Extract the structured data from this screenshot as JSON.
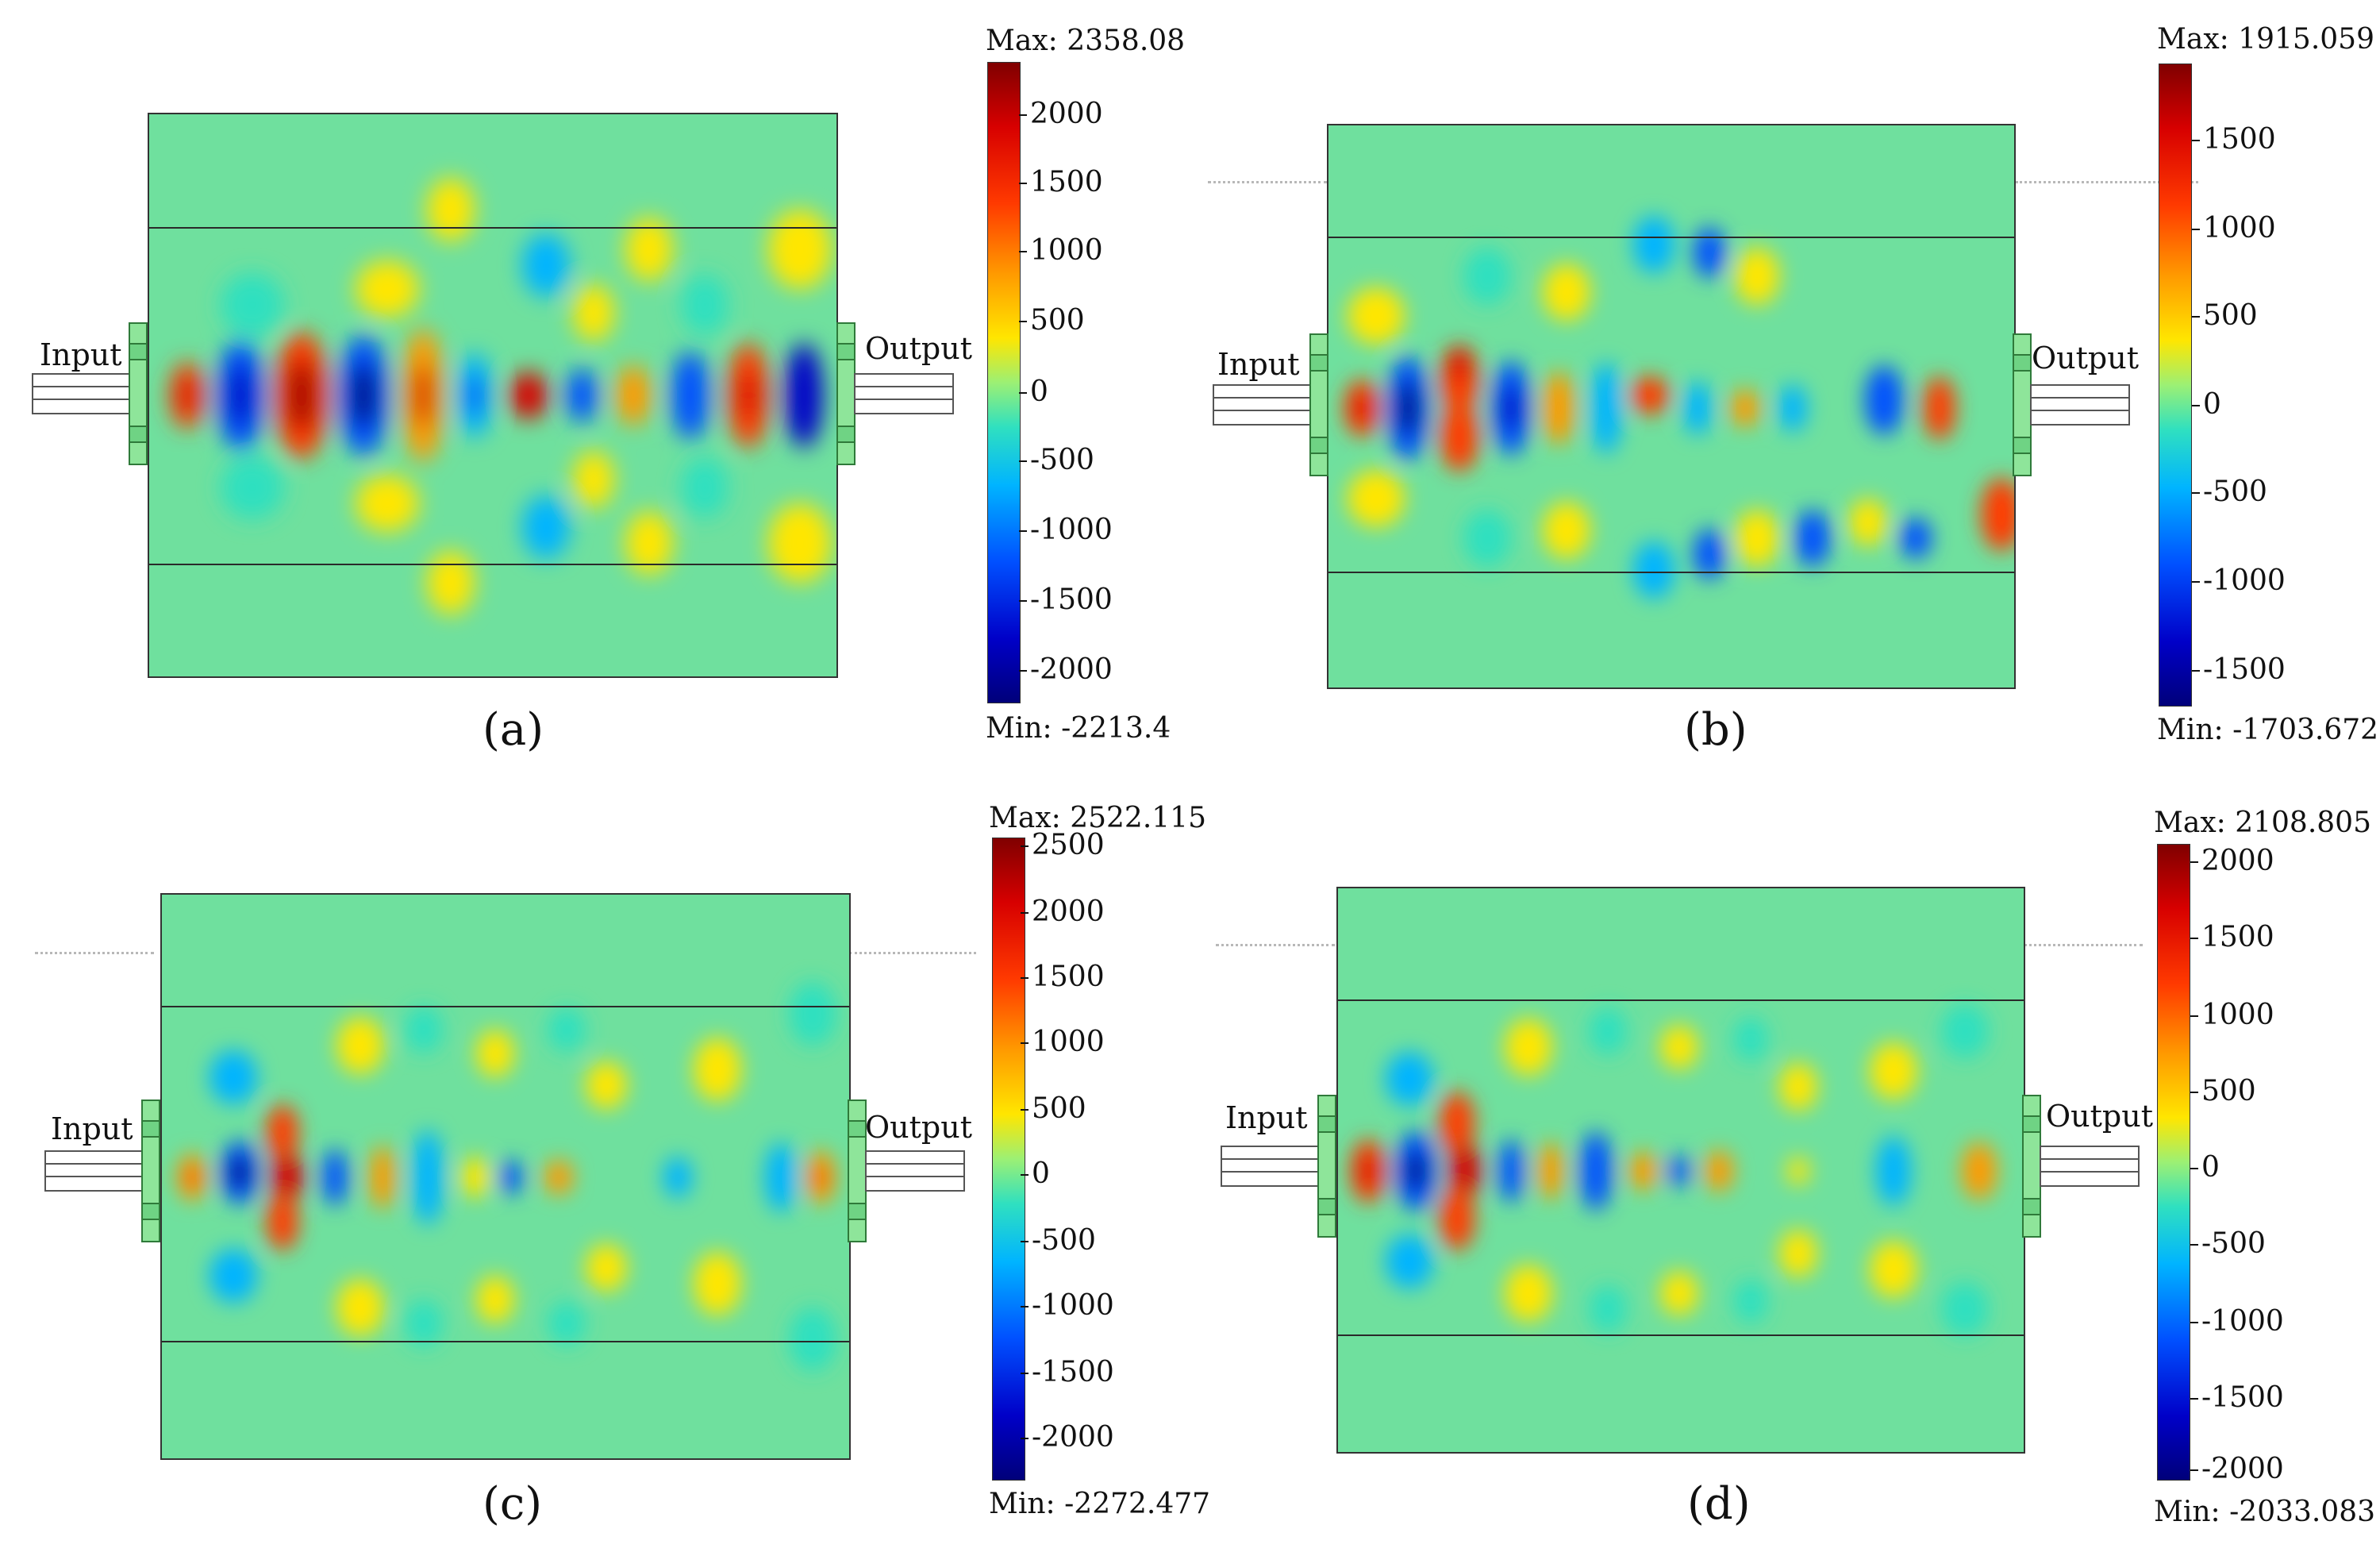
{
  "panels": [
    {
      "id": "a",
      "caption": "(a)",
      "input_label": "Input",
      "output_label": "Output",
      "colorbar": {
        "max_label": "Max: 2358.08",
        "min_label": "Min: -2213.4",
        "ticks": [
          "2000",
          "1500",
          "1000",
          "500",
          "0",
          "-500",
          "-1000",
          "-1500",
          "-2000"
        ]
      }
    },
    {
      "id": "b",
      "caption": "(b)",
      "input_label": "Input",
      "output_label": "Output",
      "colorbar": {
        "max_label": "Max: 1915.059",
        "min_label": "Min: -1703.672",
        "ticks": [
          "1500",
          "1000",
          "500",
          "0",
          "-500",
          "-1000",
          "-1500"
        ]
      }
    },
    {
      "id": "c",
      "caption": "(c)",
      "input_label": "Input",
      "output_label": "Output",
      "colorbar": {
        "max_label": "Max: 2522.115",
        "min_label": "Min: -2272.477",
        "ticks": [
          "2500",
          "2000",
          "1500",
          "1000",
          "500",
          "0",
          "-500",
          "-1000",
          "-1500",
          "-2000"
        ]
      }
    },
    {
      "id": "d",
      "caption": "(d)",
      "input_label": "Input",
      "output_label": "Output",
      "colorbar": {
        "max_label": "Max: 2108.805",
        "min_label": "Min: -2033.083",
        "ticks": [
          "2000",
          "1500",
          "1000",
          "500",
          "0",
          "-500",
          "-1000",
          "-1500",
          "-2000"
        ]
      }
    }
  ],
  "colors": {
    "background_field": "#6fe09e",
    "positive_peak": "#d70000",
    "negative_peak": "#0000c8",
    "flange": "#8ee59a"
  }
}
